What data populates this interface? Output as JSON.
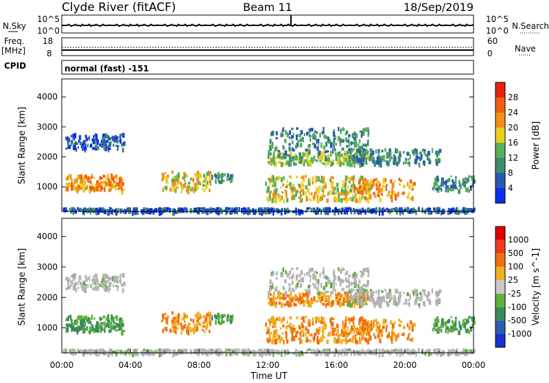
{
  "header": {
    "station": "Clyde River (fitACF)",
    "beam": "Beam 11",
    "date": "18/Sep/2019"
  },
  "nsky_panel": {
    "label": "N.Sky",
    "left_ticks": [
      "10^5",
      "10^0"
    ],
    "right_ticks": [
      "10^5",
      "10^0"
    ],
    "right_label": "N.Search"
  },
  "freq_panel": {
    "label_line1": "Freq.",
    "label_line2": "[MHz]",
    "left_ticks": [
      "18",
      "8"
    ],
    "right_ticks": [
      "60",
      "0"
    ],
    "right_label": "Nave"
  },
  "cpid": {
    "label": "CPID",
    "value": "normal (fast) -151"
  },
  "colors": {
    "power": [
      "#0c2cf0",
      "#2a5ab0",
      "#3c8c70",
      "#58b058",
      "#e8d020",
      "#f09018",
      "#f06010",
      "#e82010"
    ],
    "velocity": [
      "#e00000",
      "#f03c1c",
      "#f07010",
      "#f0b020",
      "#c8c8c8",
      "#60b040",
      "#3a8a5a",
      "#2a60b0",
      "#1a30d0"
    ],
    "ground_scatter": "#b4b4b4"
  },
  "chart_data": [
    {
      "type": "heatmap",
      "name": "Power",
      "ylabel": "Slant Range [km]",
      "y_ticks": [
        1000,
        2000,
        3000,
        4000
      ],
      "ylim": [
        180,
        4600
      ],
      "xlim": [
        0,
        24
      ],
      "colorbar_label": "Power [dB]",
      "colorbar_ticks": [
        "4",
        "8",
        "12",
        "16",
        "20",
        "24",
        "28"
      ],
      "colorbar_range": [
        0,
        32
      ]
    },
    {
      "type": "heatmap",
      "name": "Velocity",
      "ylabel": "Slant Range [km]",
      "y_ticks": [
        1000,
        2000,
        3000,
        4000
      ],
      "ylim": [
        180,
        4600
      ],
      "xlim": [
        0,
        24
      ],
      "xlabel": "Time UT",
      "x_tick_labels": [
        "00:00",
        "04:00",
        "08:00",
        "12:00",
        "16:00",
        "20:00",
        "00:00"
      ],
      "colorbar_label": "Velocity [m s^-1]",
      "colorbar_ticks": [
        "1000",
        "500",
        "100",
        "25",
        "-25",
        "-100",
        "-500",
        "-1000"
      ]
    }
  ]
}
